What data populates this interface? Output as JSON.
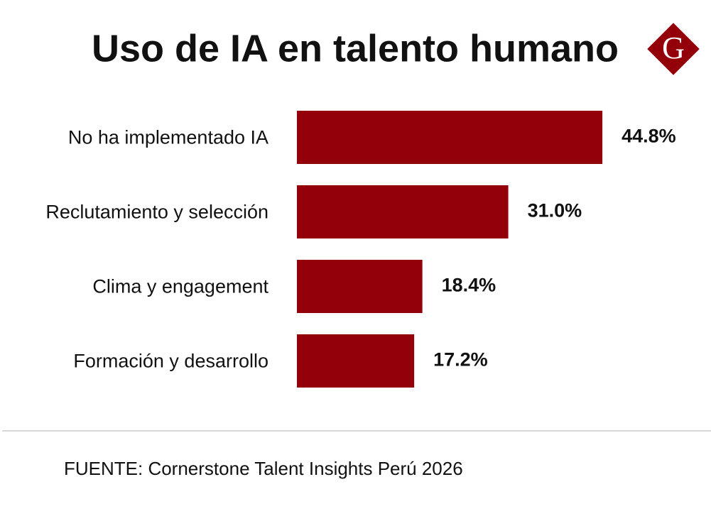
{
  "chart_data": {
    "type": "bar",
    "orientation": "horizontal",
    "title": "Uso de IA en talento humano",
    "logo": "G",
    "categories": [
      "No ha implementado IA",
      "Reclutamiento y selección",
      "Clima y engagement",
      "Formación y desarrollo"
    ],
    "values": [
      44.8,
      31.0,
      18.4,
      17.2
    ],
    "value_labels": [
      "44.8%",
      "31.0%",
      "18.4%",
      "17.2%"
    ],
    "color": "#94000a",
    "source": "FUENTE: Cornerstone Talent Insights Perú 2026"
  }
}
